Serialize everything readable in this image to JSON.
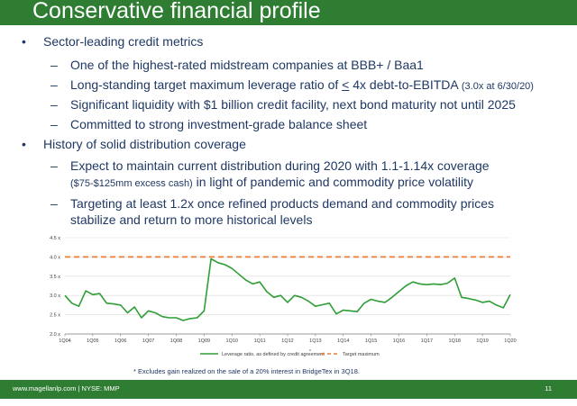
{
  "title": "Conservative financial profile",
  "bullets": [
    {
      "text": "Sector-leading credit metrics",
      "sub": [
        {
          "text": "One of the highest-rated midstream companies at BBB+ / Baa1"
        },
        {
          "pre": "Long-standing target maximum leverage ratio of ",
          "underlined": "<",
          "post": " 4x debt-to-EBITDA ",
          "small": "(3.0x at 6/30/20)"
        },
        {
          "text": "Significant liquidity with $1 billion credit facility, next bond maturity not until 2025"
        },
        {
          "text": "Committed to strong investment-grade balance sheet"
        }
      ]
    },
    {
      "text": "History of solid distribution coverage",
      "sub": [
        {
          "line1": "Expect to maintain current distribution during 2020 with 1.1-1.14x coverage",
          "line2_small": "($75-$125mm excess cash)",
          "line2": " in light of pandemic and commodity price volatility"
        },
        {
          "line1": "Targeting at least 1.2x once refined products demand and commodity prices",
          "line2": "stabilize and return to more historical levels"
        }
      ]
    }
  ],
  "chart_data": {
    "type": "line",
    "x_ticks": [
      "1Q04",
      "1Q05",
      "1Q06",
      "1Q07",
      "1Q08",
      "1Q09",
      "1Q10",
      "1Q11",
      "1Q12",
      "1Q13",
      "1Q14",
      "1Q15",
      "1Q16",
      "1Q17",
      "1Q18",
      "1Q19",
      "1Q20"
    ],
    "y_ticks": [
      "2.0 x",
      "2.5 x",
      "3.0 x",
      "3.5 x",
      "4.0 x",
      "4.5 x"
    ],
    "ylim": [
      2.0,
      4.5
    ],
    "series": [
      {
        "name": "Leverage ratio, as defined by credit agreement",
        "name_mark": "*",
        "color": "#2e9e35",
        "x": [
          0,
          0.25,
          0.5,
          0.75,
          1,
          1.25,
          1.5,
          1.75,
          2,
          2.25,
          2.5,
          2.75,
          3,
          3.25,
          3.5,
          3.75,
          4,
          4.25,
          4.5,
          4.75,
          5,
          5.25,
          5.5,
          5.75,
          6,
          6.25,
          6.5,
          6.75,
          7,
          7.25,
          7.5,
          7.75,
          8,
          8.25,
          8.5,
          8.75,
          9,
          9.25,
          9.5,
          9.75,
          10,
          10.25,
          10.5,
          10.75,
          11,
          11.25,
          11.5,
          11.75,
          12,
          12.25,
          12.5,
          12.75,
          13,
          13.25,
          13.5,
          13.75,
          14,
          14.25,
          14.5,
          14.75,
          15,
          15.25,
          15.5,
          15.75,
          16
        ],
        "values": [
          3.0,
          2.8,
          2.72,
          3.12,
          3.02,
          3.05,
          2.8,
          2.78,
          2.75,
          2.55,
          2.7,
          2.42,
          2.6,
          2.55,
          2.45,
          2.42,
          2.42,
          2.35,
          2.4,
          2.42,
          2.6,
          3.95,
          3.85,
          3.8,
          3.7,
          3.55,
          3.4,
          3.3,
          3.35,
          3.1,
          2.95,
          3.0,
          2.82,
          3.0,
          2.95,
          2.85,
          2.72,
          2.76,
          2.8,
          2.52,
          2.62,
          2.6,
          2.58,
          2.8,
          2.9,
          2.85,
          2.82,
          2.95,
          3.1,
          3.25,
          3.35,
          3.3,
          3.28,
          3.3,
          3.28,
          3.32,
          3.45,
          2.95,
          2.92,
          2.88,
          2.82,
          2.85,
          2.75,
          2.68,
          3.02
        ]
      },
      {
        "name": "Target maximum",
        "color": "#ed7d31",
        "dashed": true,
        "x": [
          0,
          16
        ],
        "values": [
          4.0,
          4.0
        ]
      }
    ]
  },
  "footnote": "* Excludes gain realized on the sale of a 20% interest in BridgeTex in 3Q18.",
  "footer": {
    "left": "www.magellanlp.com | NYSE: MMP",
    "page": "11"
  }
}
